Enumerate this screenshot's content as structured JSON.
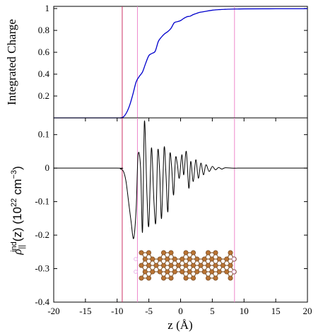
{
  "chart_data": [
    {
      "type": "line",
      "panel": "top",
      "title": "",
      "xlabel": "",
      "ylabel": "Integrated Charge",
      "xlim": [
        -20,
        20
      ],
      "ylim": [
        0,
        1.02
      ],
      "yticks": [
        0.2,
        0.4,
        0.6,
        0.8,
        1
      ],
      "ytick_labels": [
        "0.2",
        "0.4",
        "0.6",
        "0.8",
        "1"
      ],
      "grid": false,
      "series_color": "#0000cc",
      "series": [
        {
          "name": "",
          "x": [
            -20,
            -10,
            -9.5,
            -9,
            -8.5,
            -8,
            -7.5,
            -7,
            -6.5,
            -6,
            -5.5,
            -5,
            -4.5,
            -4,
            -3.5,
            -3,
            -2.5,
            -2,
            -1.5,
            -1,
            -0.5,
            0,
            0.5,
            1,
            1.5,
            2,
            2.5,
            3,
            3.5,
            4,
            4.5,
            5,
            5.5,
            6,
            6.5,
            7,
            7.5,
            8,
            9,
            10,
            15,
            20
          ],
          "y": [
            0,
            0,
            0,
            0.01,
            0.05,
            0.12,
            0.22,
            0.33,
            0.38,
            0.42,
            0.5,
            0.57,
            0.59,
            0.61,
            0.7,
            0.74,
            0.77,
            0.79,
            0.82,
            0.87,
            0.88,
            0.89,
            0.91,
            0.925,
            0.93,
            0.945,
            0.955,
            0.965,
            0.97,
            0.975,
            0.98,
            0.985,
            0.988,
            0.99,
            0.992,
            0.993,
            0.994,
            0.995,
            0.996,
            0.997,
            0.998,
            0.998
          ]
        }
      ]
    },
    {
      "type": "line",
      "panel": "bottom",
      "title": "",
      "xlabel": "z (Å)",
      "ylabel": "ρ||ind(z) (10²² cm⁻³)",
      "ylabel_parts": {
        "rho": "ρ",
        "sub": "||",
        "sup": "ind",
        "arg": "(z) (10",
        "exp": "22",
        "unit": " cm",
        "unit_exp": "−3",
        "close": ")"
      },
      "xlim": [
        -20,
        20
      ],
      "ylim": [
        -0.4,
        0.15
      ],
      "xticks": [
        -20,
        -15,
        -10,
        -5,
        0,
        5,
        10,
        15,
        20
      ],
      "xtick_labels": [
        "-20",
        "-15",
        "-10",
        "-5",
        "0",
        "5",
        "10",
        "15",
        "20"
      ],
      "yticks": [
        -0.4,
        -0.3,
        -0.2,
        -0.1,
        0,
        0.1
      ],
      "ytick_labels": [
        "-0.4",
        "-0.3",
        "-0.2",
        "-0.1",
        "0",
        "0.1"
      ],
      "grid": false,
      "series_color": "#000000",
      "series": [
        {
          "name": "",
          "x": [
            -20,
            -10,
            -9.5,
            -9,
            -8.6,
            -8.2,
            -7.8,
            -7.4,
            -7.0,
            -6.7,
            -6.3,
            -6.0,
            -5.7,
            -5.3,
            -5.0,
            -4.6,
            -4.2,
            -3.9,
            -3.6,
            -3.3,
            -3.0,
            -2.6,
            -2.3,
            -2.0,
            -1.7,
            -1.4,
            -1.1,
            -0.8,
            -0.5,
            -0.2,
            0.2,
            0.5,
            0.9,
            1.3,
            1.6,
            2.0,
            2.4,
            2.8,
            3.2,
            3.6,
            4.0,
            4.5,
            5.0,
            5.5,
            6.0,
            6.5,
            7.0,
            8.0,
            9.0,
            10.0,
            20.0
          ],
          "y": [
            0,
            0,
            -0.002,
            -0.01,
            -0.04,
            -0.1,
            -0.16,
            -0.21,
            -0.12,
            0.04,
            0.0,
            -0.19,
            0.14,
            -0.08,
            -0.17,
            0.06,
            -0.1,
            -0.16,
            0.05,
            -0.01,
            -0.15,
            0.06,
            -0.02,
            -0.13,
            0.04,
            0.0,
            -0.08,
            0.03,
            0.01,
            -0.03,
            0.04,
            -0.02,
            0.05,
            -0.06,
            0.02,
            -0.04,
            0.025,
            -0.03,
            0.015,
            -0.02,
            0.01,
            -0.01,
            0.005,
            -0.005,
            0.002,
            -0.003,
            0.001,
            0,
            0,
            0,
            0
          ]
        }
      ]
    }
  ],
  "vertical_lines": {
    "x": [
      -9.2,
      -6.8,
      8.5
    ],
    "colors": [
      "#cc3366",
      "#ee88cc",
      "#ee88cc"
    ]
  },
  "molecule_inset": {
    "description_icon": "nanoribbon-structure-icon",
    "atom_color": "#b87333",
    "edge_atom_color": "#e8b4e8"
  }
}
